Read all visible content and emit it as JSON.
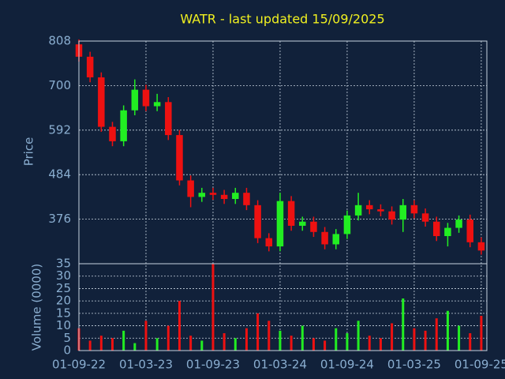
{
  "chart_data": {
    "type": "candlestick",
    "title": "WATR - last updated 15/09/2025",
    "ylabel": "Price",
    "volume_label": "Volume (0000)",
    "up_color": "#22ee22",
    "down_color": "#ee1111",
    "grid": true,
    "xlim": [
      0,
      36.5
    ],
    "xticks": [
      {
        "value": 0,
        "label": "01-09-22"
      },
      {
        "value": 6,
        "label": "01-03-23"
      },
      {
        "value": 12,
        "label": "01-09-23"
      },
      {
        "value": 18,
        "label": "01-03-24"
      },
      {
        "value": 24,
        "label": "01-09-24"
      },
      {
        "value": 30,
        "label": "01-03-25"
      },
      {
        "value": 36,
        "label": "01-09-25"
      }
    ],
    "ylim": [
      268,
      808
    ],
    "yticks": [
      376,
      484,
      592,
      700,
      808
    ],
    "volume_ylim": [
      0,
      35
    ],
    "volume_yticks": [
      0,
      5,
      10,
      15,
      20,
      25,
      30,
      35
    ],
    "x": [
      0,
      1,
      2,
      3,
      4,
      5,
      6,
      7,
      8,
      9,
      10,
      11,
      12,
      13,
      14,
      15,
      16,
      17,
      18,
      19,
      20,
      21,
      22,
      23,
      24,
      25,
      26,
      27,
      28,
      29,
      30,
      31,
      32,
      33,
      34,
      35,
      36
    ],
    "open": [
      800,
      770,
      720,
      600,
      565,
      640,
      690,
      650,
      660,
      580,
      470,
      430,
      440,
      435,
      425,
      440,
      410,
      330,
      310,
      420,
      360,
      370,
      345,
      315,
      340,
      385,
      410,
      400,
      395,
      375,
      410,
      390,
      370,
      335,
      355,
      375,
      320
    ],
    "high": [
      812,
      782,
      732,
      612,
      652,
      715,
      702,
      680,
      672,
      592,
      482,
      452,
      452,
      447,
      452,
      452,
      422,
      342,
      440,
      432,
      382,
      382,
      357,
      352,
      397,
      440,
      422,
      412,
      407,
      425,
      422,
      402,
      382,
      367,
      385,
      387,
      332
    ],
    "low": [
      758,
      708,
      588,
      553,
      553,
      628,
      638,
      638,
      568,
      458,
      405,
      418,
      423,
      413,
      413,
      398,
      318,
      298,
      298,
      348,
      348,
      333,
      303,
      303,
      328,
      373,
      388,
      383,
      363,
      345,
      378,
      358,
      323,
      310,
      343,
      308,
      290
    ],
    "close": [
      770,
      720,
      600,
      565,
      640,
      690,
      650,
      660,
      580,
      470,
      430,
      440,
      435,
      425,
      440,
      410,
      330,
      310,
      420,
      360,
      370,
      345,
      315,
      340,
      385,
      410,
      400,
      395,
      375,
      410,
      390,
      370,
      335,
      355,
      375,
      320,
      300
    ],
    "volume": [
      9,
      4,
      6,
      5,
      8,
      3,
      12,
      5,
      10,
      20,
      6,
      4,
      35,
      7,
      5,
      9,
      15,
      12,
      8,
      6,
      10,
      5,
      4,
      9,
      7,
      12,
      6,
      5,
      11,
      21,
      9,
      8,
      13,
      16,
      10,
      7,
      14
    ]
  }
}
